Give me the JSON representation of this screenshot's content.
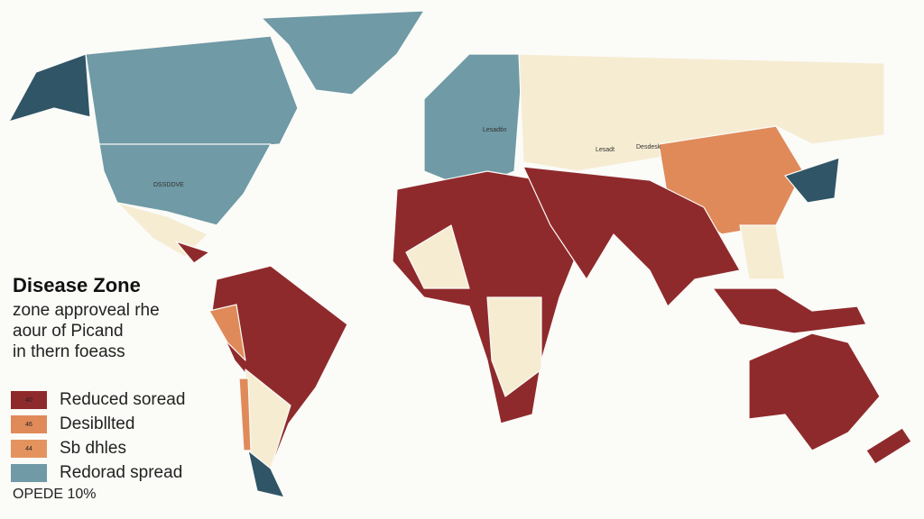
{
  "header": {
    "title": "Disease Zone",
    "subtitle_lines": [
      "zone approveal rhe",
      "aour of Picand",
      "in thern foeass"
    ]
  },
  "legend": {
    "items": [
      {
        "label": "Reduced soread",
        "badge": "40"
      },
      {
        "label": "Desibllted",
        "badge": "46"
      },
      {
        "label": "Sb dhles",
        "badge": "44"
      },
      {
        "label": "Redorad spread"
      }
    ],
    "footer": "OPEDE 10%"
  },
  "map_labels": [
    "DSSDDVE",
    "Lesadtin",
    "Lesadt",
    "Desdesk"
  ]
}
